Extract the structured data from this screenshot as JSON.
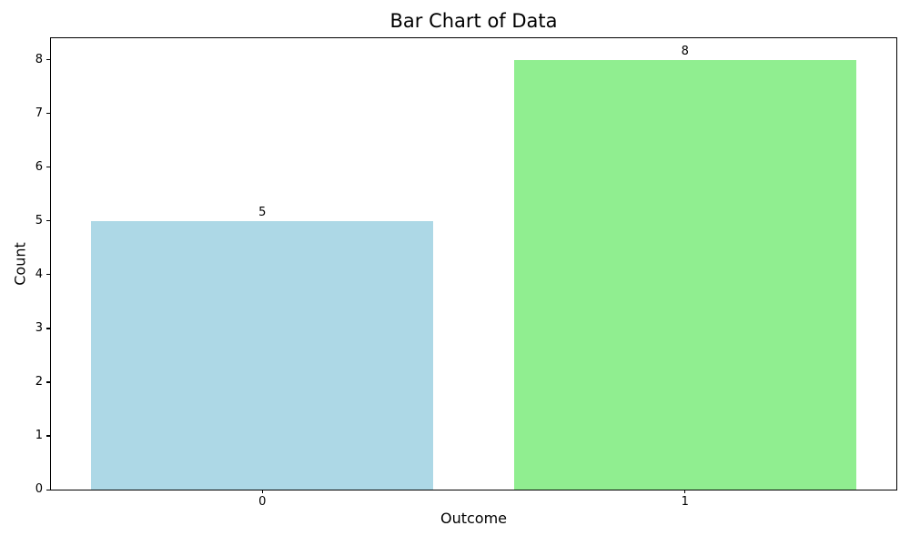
{
  "chart_data": {
    "type": "bar",
    "title": "Bar Chart of Data",
    "xlabel": "Outcome",
    "ylabel": "Count",
    "categories": [
      "0",
      "1"
    ],
    "values": [
      5,
      8
    ],
    "bar_value_labels": [
      "5",
      "8"
    ],
    "bar_colors": [
      "#ADD8E6",
      "#90EE90"
    ],
    "yticks": [
      0,
      1,
      2,
      3,
      4,
      5,
      6,
      7,
      8
    ],
    "ylim": [
      0,
      8.4
    ],
    "xlim": [
      -0.5,
      1.5
    ],
    "bar_width": 0.81,
    "grid": false,
    "legend": "none",
    "colors": {
      "background": "#ffffff",
      "spine": "#000000",
      "text": "#000000"
    }
  }
}
